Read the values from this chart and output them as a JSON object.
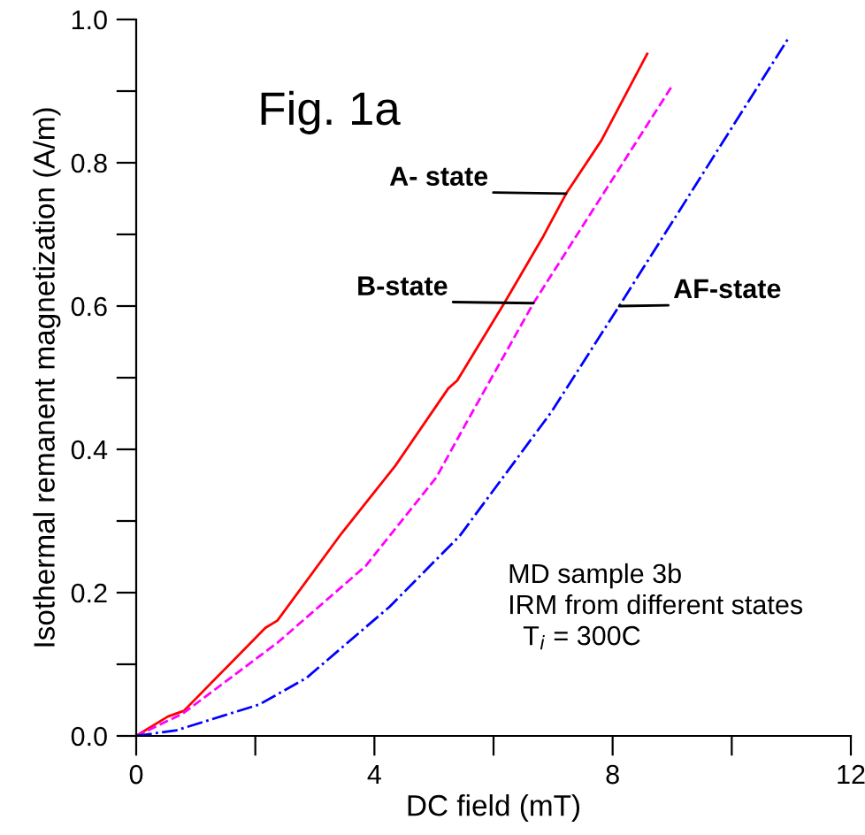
{
  "chart_data": {
    "type": "line",
    "xlabel": "DC field (mT)",
    "ylabel": "Isothermal remanent magnetization (A/m)",
    "xlim": [
      0,
      12
    ],
    "ylim": [
      0,
      1.0
    ],
    "xticks": [
      0,
      {
        "value": 2,
        "label": null
      },
      4,
      {
        "value": 6,
        "label": null
      },
      8,
      {
        "value": 10,
        "label": null
      },
      12
    ],
    "yticks": [
      {
        "value": 0,
        "label": "0.0"
      },
      {
        "value": 0.1,
        "label": null
      },
      0.2,
      {
        "value": 0.3,
        "label": null
      },
      0.4,
      {
        "value": 0.5,
        "label": null
      },
      0.6,
      {
        "value": 0.7,
        "label": null
      },
      0.8,
      {
        "value": 0.9,
        "label": null
      },
      {
        "value": 1.0,
        "label": "1.0"
      }
    ],
    "grid": false,
    "legend": false,
    "series": [
      {
        "color": "#ff0000",
        "line_style": "solid",
        "x": [
          0,
          0.53,
          0.8,
          2.17,
          2.37,
          3.45,
          4.35,
          5.24,
          5.39,
          6.18,
          6.82,
          7.22,
          7.81,
          8.58
        ],
        "values": [
          0,
          0.027,
          0.035,
          0.151,
          0.161,
          0.283,
          0.377,
          0.485,
          0.496,
          0.604,
          0.695,
          0.757,
          0.831,
          0.952
        ]
      },
      {
        "color": "#ff00ff",
        "line_style": "dashed",
        "x": [
          0,
          0.78,
          2.37,
          3.85,
          5.04,
          5.53,
          6.67,
          8.98
        ],
        "values": [
          0,
          0.031,
          0.13,
          0.237,
          0.361,
          0.435,
          0.604,
          0.905
        ]
      },
      {
        "color": "#0000ff",
        "line_style": "dashdot",
        "x": [
          0,
          0.68,
          2.07,
          2.86,
          4.25,
          5.43,
          6.97,
          8.11,
          10.96
        ],
        "values": [
          0,
          0.008,
          0.044,
          0.081,
          0.18,
          0.279,
          0.452,
          0.6,
          0.975
        ]
      }
    ],
    "annotations": [
      {
        "text": "A- state",
        "x": 7.22,
        "y": 0.757
      },
      {
        "text": "B-state",
        "x": 6.67,
        "y": 0.604
      },
      {
        "text": "AF-state",
        "x": 8.11,
        "y": 0.6
      },
      "Fig. 1a",
      "MD sample 3b\nIRM from different states\n  T$_{i}$ = 300C"
    ]
  }
}
